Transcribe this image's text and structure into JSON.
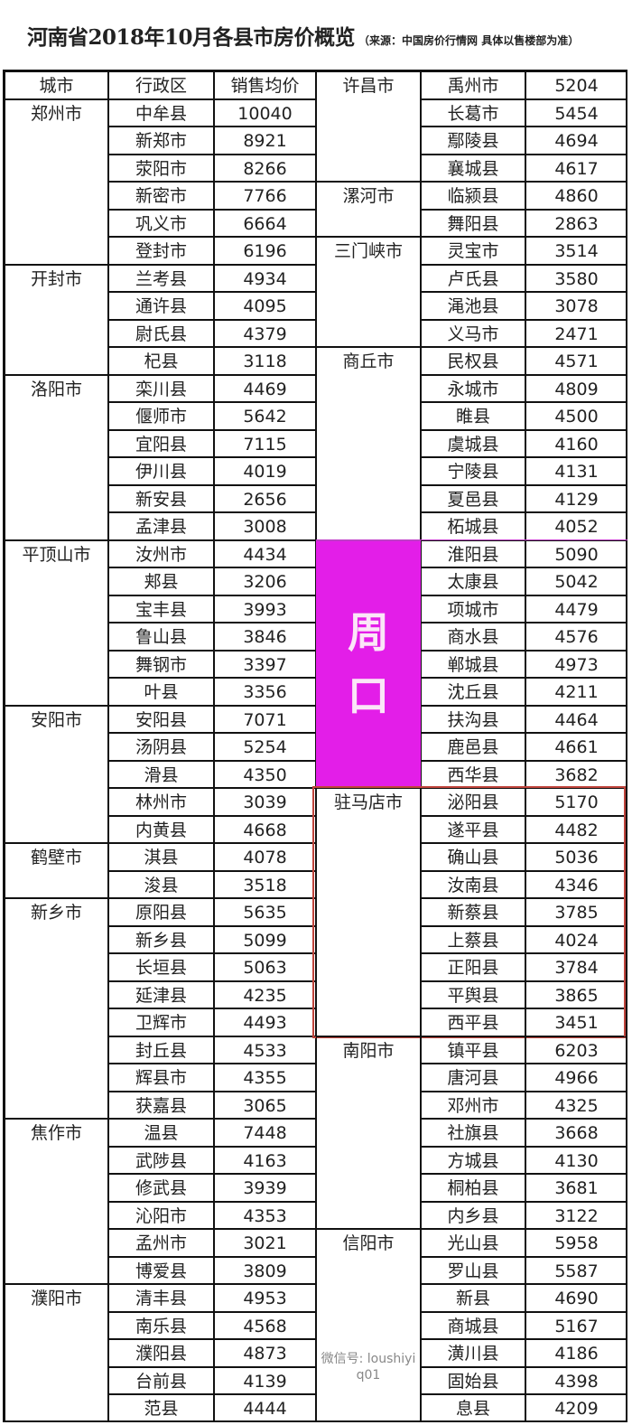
{
  "title": "河南省2018年10月各县市房价概览",
  "subtitle": "（来源：中国房价行情网  具体以售楼部为准）",
  "headers": [
    "城市",
    "行政区",
    "销售均价"
  ],
  "colors": {
    "zhoukou_fill": "#e31ee8",
    "zhumadian_outline": "#c0443c"
  },
  "left_groups": [
    {
      "city": "郑州市",
      "items": [
        [
          "中牟县",
          "10040"
        ],
        [
          "新郑市",
          "8921"
        ],
        [
          "荥阳市",
          "8266"
        ],
        [
          "新密市",
          "7766"
        ],
        [
          "巩义市",
          "6664"
        ],
        [
          "登封市",
          "6196"
        ]
      ]
    },
    {
      "city": "开封市",
      "items": [
        [
          "兰考县",
          "4934"
        ],
        [
          "通许县",
          "4095"
        ],
        [
          "尉氏县",
          "4379"
        ],
        [
          "杞县",
          "3118"
        ]
      ]
    },
    {
      "city": "洛阳市",
      "items": [
        [
          "栾川县",
          "4469"
        ],
        [
          "偃师市",
          "5642"
        ],
        [
          "宜阳县",
          "7115"
        ],
        [
          "伊川县",
          "4019"
        ],
        [
          "新安县",
          "2656"
        ],
        [
          "孟津县",
          "3008"
        ]
      ]
    },
    {
      "city": "平顶山市",
      "items": [
        [
          "汝州市",
          "4434"
        ],
        [
          "郏县",
          "3206"
        ],
        [
          "宝丰县",
          "3993"
        ],
        [
          "鲁山县",
          "3846"
        ],
        [
          "舞钢市",
          "3397"
        ],
        [
          "叶县",
          "3356"
        ]
      ]
    },
    {
      "city": "安阳市",
      "items": [
        [
          "安阳县",
          "7071"
        ],
        [
          "汤阴县",
          "5254"
        ],
        [
          "滑县",
          "4350"
        ],
        [
          "林州市",
          "3039"
        ],
        [
          "内黄县",
          "4668"
        ]
      ]
    },
    {
      "city": "鹤壁市",
      "items": [
        [
          "淇县",
          "4078"
        ],
        [
          "浚县",
          "3518"
        ]
      ]
    },
    {
      "city": "新乡市",
      "items": [
        [
          "原阳县",
          "5635"
        ],
        [
          "新乡县",
          "5099"
        ],
        [
          "长垣县",
          "5063"
        ],
        [
          "延津县",
          "4235"
        ],
        [
          "卫辉市",
          "4493"
        ],
        [
          "封丘县",
          "4533"
        ],
        [
          "辉县市",
          "4355"
        ],
        [
          "获嘉县",
          "3065"
        ]
      ]
    },
    {
      "city": "焦作市",
      "items": [
        [
          "温县",
          "7448"
        ],
        [
          "武陟县",
          "4163"
        ],
        [
          "修武县",
          "3939"
        ],
        [
          "沁阳市",
          "4353"
        ],
        [
          "孟州市",
          "3021"
        ],
        [
          "博爱县",
          "3809"
        ]
      ]
    },
    {
      "city": "濮阳市",
      "items": [
        [
          "清丰县",
          "4953"
        ],
        [
          "南乐县",
          "4568"
        ],
        [
          "濮阳县",
          "4873"
        ],
        [
          "台前县",
          "4139"
        ],
        [
          "范县",
          "4444"
        ]
      ]
    }
  ],
  "right_groups": [
    {
      "city": "许昌市",
      "items": [
        [
          "禹州市",
          "5204"
        ],
        [
          "长葛市",
          "5454"
        ],
        [
          "鄢陵县",
          "4694"
        ],
        [
          "襄城县",
          "4617"
        ]
      ]
    },
    {
      "city": "漯河市",
      "items": [
        [
          "临颍县",
          "4860"
        ],
        [
          "舞阳县",
          "2863"
        ]
      ]
    },
    {
      "city": "三门峡市",
      "items": [
        [
          "灵宝市",
          "3514"
        ],
        [
          "卢氏县",
          "3580"
        ],
        [
          "渑池县",
          "3078"
        ],
        [
          "义马市",
          "2471"
        ]
      ]
    },
    {
      "city": "商丘市",
      "items": [
        [
          "民权县",
          "4571"
        ],
        [
          "永城市",
          "4809"
        ],
        [
          "睢县",
          "4500"
        ],
        [
          "虞城县",
          "4160"
        ],
        [
          "宁陵县",
          "4131"
        ],
        [
          "夏邑县",
          "4129"
        ],
        [
          "柘城县",
          "4052"
        ]
      ]
    },
    {
      "city": "周口",
      "highlight": "magenta",
      "items": [
        [
          "淮阳县",
          "5090"
        ],
        [
          "太康县",
          "5042"
        ],
        [
          "项城市",
          "4479"
        ],
        [
          "商水县",
          "4576"
        ],
        [
          "郸城县",
          "4973"
        ],
        [
          "沈丘县",
          "4211"
        ],
        [
          "扶沟县",
          "4464"
        ],
        [
          "鹿邑县",
          "4661"
        ],
        [
          "西华县",
          "3682"
        ]
      ]
    },
    {
      "city": "驻马店市",
      "highlight": "red-outline",
      "items": [
        [
          "泌阳县",
          "5170"
        ],
        [
          "遂平县",
          "4482"
        ],
        [
          "确山县",
          "5036"
        ],
        [
          "汝南县",
          "4346"
        ],
        [
          "新蔡县",
          "3785"
        ],
        [
          "上蔡县",
          "4024"
        ],
        [
          "正阳县",
          "3784"
        ],
        [
          "平舆县",
          "3865"
        ],
        [
          "西平县",
          "3451"
        ]
      ]
    },
    {
      "city": "南阳市",
      "items": [
        [
          "镇平县",
          "6203"
        ],
        [
          "唐河县",
          "4966"
        ],
        [
          "邓州市",
          "4325"
        ],
        [
          "社旗县",
          "3668"
        ],
        [
          "方城县",
          "4130"
        ],
        [
          "桐柏县",
          "3681"
        ],
        [
          "内乡县",
          "3122"
        ]
      ]
    },
    {
      "city": "信阳市",
      "items": [
        [
          "光山县",
          "5958"
        ],
        [
          "罗山县",
          "5587"
        ],
        [
          "新县",
          "4690"
        ],
        [
          "商城县",
          "5167"
        ],
        [
          "潢川县",
          "4186"
        ],
        [
          "固始县",
          "4398"
        ],
        [
          "息县",
          "4209"
        ]
      ]
    }
  ],
  "watermark": "微信号: loushiyiq01"
}
